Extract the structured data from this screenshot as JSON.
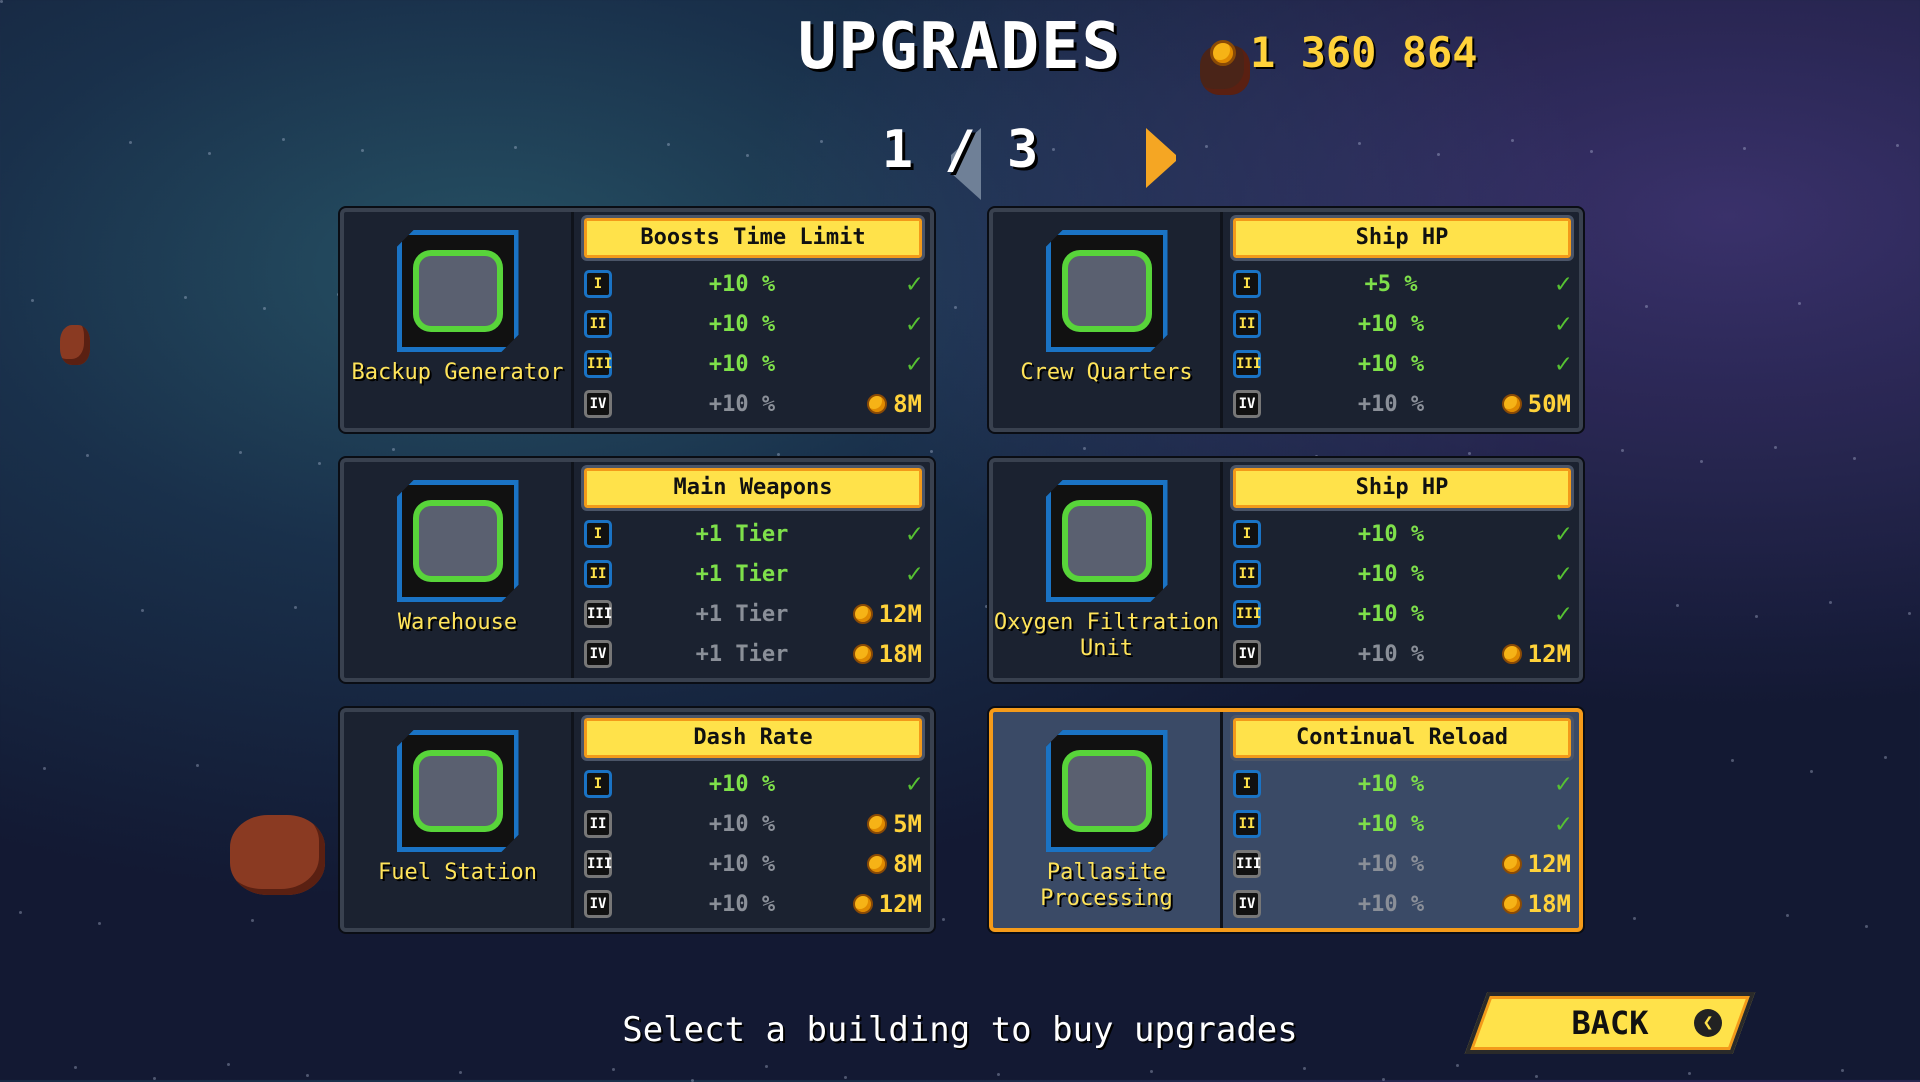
{
  "title": "UPGRADES",
  "currency": {
    "amount": "1 360 864",
    "icon": "coin-icon"
  },
  "pager": {
    "label": "1 / 3",
    "current": 1,
    "total": 3
  },
  "cards": [
    {
      "building": "Backup Generator",
      "upgrade": "Boosts Time Limit",
      "selected": false,
      "tiers": [
        {
          "tier": "I",
          "value": "+10 %",
          "purchased": true,
          "cost": ""
        },
        {
          "tier": "II",
          "value": "+10 %",
          "purchased": true,
          "cost": ""
        },
        {
          "tier": "III",
          "value": "+10 %",
          "purchased": true,
          "cost": ""
        },
        {
          "tier": "IV",
          "value": "+10 %",
          "purchased": false,
          "cost": "8M"
        }
      ]
    },
    {
      "building": "Crew Quarters",
      "upgrade": "Ship HP",
      "selected": false,
      "tiers": [
        {
          "tier": "I",
          "value": "+5 %",
          "purchased": true,
          "cost": ""
        },
        {
          "tier": "II",
          "value": "+10 %",
          "purchased": true,
          "cost": ""
        },
        {
          "tier": "III",
          "value": "+10 %",
          "purchased": true,
          "cost": ""
        },
        {
          "tier": "IV",
          "value": "+10 %",
          "purchased": false,
          "cost": "50M"
        }
      ]
    },
    {
      "building": "Warehouse",
      "upgrade": "Main Weapons",
      "selected": false,
      "tiers": [
        {
          "tier": "I",
          "value": "+1 Tier",
          "purchased": true,
          "cost": ""
        },
        {
          "tier": "II",
          "value": "+1 Tier",
          "purchased": true,
          "cost": ""
        },
        {
          "tier": "III",
          "value": "+1 Tier",
          "purchased": false,
          "cost": "12M"
        },
        {
          "tier": "IV",
          "value": "+1 Tier",
          "purchased": false,
          "cost": "18M"
        }
      ]
    },
    {
      "building": "Oxygen Filtration Unit",
      "upgrade": "Ship HP",
      "selected": false,
      "tiers": [
        {
          "tier": "I",
          "value": "+10 %",
          "purchased": true,
          "cost": ""
        },
        {
          "tier": "II",
          "value": "+10 %",
          "purchased": true,
          "cost": ""
        },
        {
          "tier": "III",
          "value": "+10 %",
          "purchased": true,
          "cost": ""
        },
        {
          "tier": "IV",
          "value": "+10 %",
          "purchased": false,
          "cost": "12M"
        }
      ]
    },
    {
      "building": "Fuel Station",
      "upgrade": "Dash Rate",
      "selected": false,
      "tiers": [
        {
          "tier": "I",
          "value": "+10 %",
          "purchased": true,
          "cost": ""
        },
        {
          "tier": "II",
          "value": "+10 %",
          "purchased": false,
          "cost": "5M"
        },
        {
          "tier": "III",
          "value": "+10 %",
          "purchased": false,
          "cost": "8M"
        },
        {
          "tier": "IV",
          "value": "+10 %",
          "purchased": false,
          "cost": "12M"
        }
      ]
    },
    {
      "building": "Pallasite Processing",
      "upgrade": "Continual Reload",
      "selected": true,
      "tiers": [
        {
          "tier": "I",
          "value": "+10 %",
          "purchased": true,
          "cost": ""
        },
        {
          "tier": "II",
          "value": "+10 %",
          "purchased": true,
          "cost": ""
        },
        {
          "tier": "III",
          "value": "+10 %",
          "purchased": false,
          "cost": "12M"
        },
        {
          "tier": "IV",
          "value": "+10 %",
          "purchased": false,
          "cost": "18M"
        }
      ]
    }
  ],
  "check_mark": "✓",
  "footer": "Select a building to buy upgrades",
  "back_label": "BACK",
  "colors": {
    "accent": "#ffe24a",
    "selected_border": "#f59b1a",
    "purchased": "#7ee04a",
    "locked": "#8a8f98"
  }
}
